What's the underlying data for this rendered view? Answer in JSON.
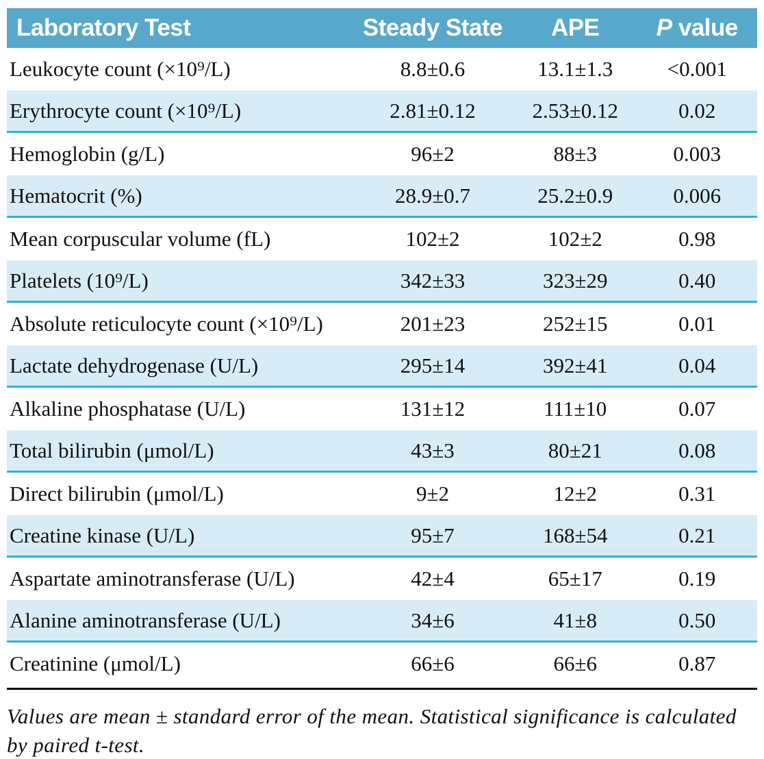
{
  "header": {
    "col_test": "Laboratory Test",
    "col_steady": "Steady State",
    "col_ape": "APE",
    "col_p_italic": "P",
    "col_p_rest": " value"
  },
  "rows": [
    {
      "test": "Leukocyte count (×10⁹/L)",
      "steady": "8.8±0.6",
      "ape": "13.1±1.3",
      "p": "<0.001"
    },
    {
      "test": "Erythrocyte count (×10⁹/L)",
      "steady": "2.81±0.12",
      "ape": "2.53±0.12",
      "p": "0.02"
    },
    {
      "test": "Hemoglobin (g/L)",
      "steady": "96±2",
      "ape": "88±3",
      "p": "0.003"
    },
    {
      "test": "Hematocrit (%)",
      "steady": "28.9±0.7",
      "ape": "25.2±0.9",
      "p": "0.006"
    },
    {
      "test": "Mean corpuscular volume (fL)",
      "steady": "102±2",
      "ape": "102±2",
      "p": "0.98"
    },
    {
      "test": "Platelets (10⁹/L)",
      "steady": "342±33",
      "ape": "323±29",
      "p": "0.40"
    },
    {
      "test": "Absolute reticulocyte count (×10⁹/L)",
      "steady": "201±23",
      "ape": "252±15",
      "p": "0.01"
    },
    {
      "test": "Lactate dehydrogenase (U/L)",
      "steady": "295±14",
      "ape": "392±41",
      "p": "0.04"
    },
    {
      "test": "Alkaline phosphatase (U/L)",
      "steady": "131±12",
      "ape": "111±10",
      "p": "0.07"
    },
    {
      "test": "Total bilirubin (μmol/L)",
      "steady": "43±3",
      "ape": "80±21",
      "p": "0.08"
    },
    {
      "test": "Direct bilirubin (μmol/L)",
      "steady": "9±2",
      "ape": "12±2",
      "p": "0.31"
    },
    {
      "test": "Creatine kinase (U/L)",
      "steady": "95±7",
      "ape": "168±54",
      "p": "0.21"
    },
    {
      "test": "Aspartate aminotransferase (U/L)",
      "steady": "42±4",
      "ape": "65±17",
      "p": "0.19"
    },
    {
      "test": "Alanine aminotransferase (U/L)",
      "steady": "34±6",
      "ape": "41±8",
      "p": "0.50"
    },
    {
      "test": "Creatinine (μmol/L)",
      "steady": "66±6",
      "ape": "66±6",
      "p": "0.87"
    }
  ],
  "footnote": "Values are mean ± standard error of the mean. Statistical significance is calculated by paired t-test.",
  "colors": {
    "header_bg": "#57a8cb",
    "header_text": "#ffffff",
    "row_shade_bg": "#d8ecf7",
    "row_shade_border": "#2bb4d5",
    "text": "#111111",
    "divider": "#000000"
  }
}
